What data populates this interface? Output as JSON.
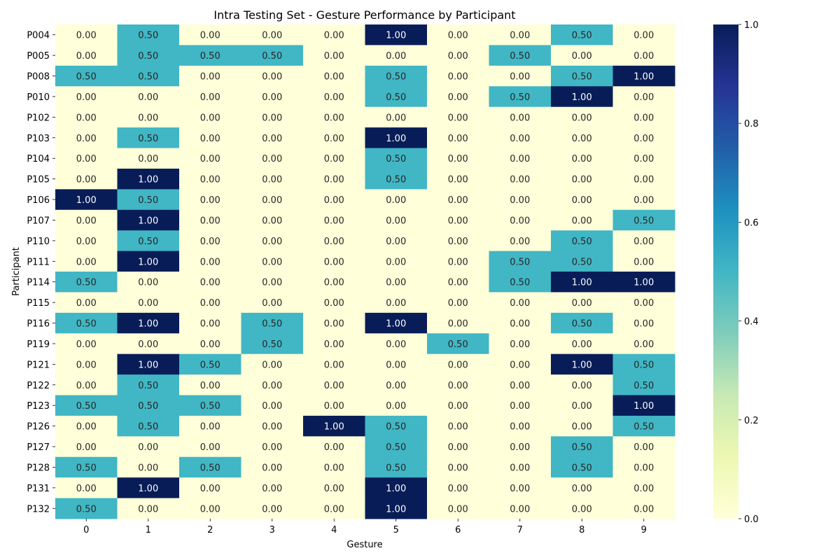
{
  "chart_data": {
    "type": "heatmap",
    "title": "Intra Testing Set - Gesture Performance by Participant",
    "xlabel": "Gesture",
    "ylabel": "Participant",
    "x": [
      "0",
      "1",
      "2",
      "3",
      "4",
      "5",
      "6",
      "7",
      "8",
      "9"
    ],
    "y": [
      "P004",
      "P005",
      "P008",
      "P010",
      "P102",
      "P103",
      "P104",
      "P105",
      "P106",
      "P107",
      "P110",
      "P111",
      "P114",
      "P115",
      "P116",
      "P119",
      "P121",
      "P122",
      "P123",
      "P126",
      "P127",
      "P128",
      "P131",
      "P132"
    ],
    "values": [
      [
        0.0,
        0.5,
        0.0,
        0.0,
        0.0,
        1.0,
        0.0,
        0.0,
        0.5,
        0.0
      ],
      [
        0.0,
        0.5,
        0.5,
        0.5,
        0.0,
        0.0,
        0.0,
        0.5,
        0.0,
        0.0
      ],
      [
        0.5,
        0.5,
        0.0,
        0.0,
        0.0,
        0.5,
        0.0,
        0.0,
        0.5,
        1.0
      ],
      [
        0.0,
        0.0,
        0.0,
        0.0,
        0.0,
        0.5,
        0.0,
        0.5,
        1.0,
        0.0
      ],
      [
        0.0,
        0.0,
        0.0,
        0.0,
        0.0,
        0.0,
        0.0,
        0.0,
        0.0,
        0.0
      ],
      [
        0.0,
        0.5,
        0.0,
        0.0,
        0.0,
        1.0,
        0.0,
        0.0,
        0.0,
        0.0
      ],
      [
        0.0,
        0.0,
        0.0,
        0.0,
        0.0,
        0.5,
        0.0,
        0.0,
        0.0,
        0.0
      ],
      [
        0.0,
        1.0,
        0.0,
        0.0,
        0.0,
        0.5,
        0.0,
        0.0,
        0.0,
        0.0
      ],
      [
        1.0,
        0.5,
        0.0,
        0.0,
        0.0,
        0.0,
        0.0,
        0.0,
        0.0,
        0.0
      ],
      [
        0.0,
        1.0,
        0.0,
        0.0,
        0.0,
        0.0,
        0.0,
        0.0,
        0.0,
        0.5
      ],
      [
        0.0,
        0.5,
        0.0,
        0.0,
        0.0,
        0.0,
        0.0,
        0.0,
        0.5,
        0.0
      ],
      [
        0.0,
        1.0,
        0.0,
        0.0,
        0.0,
        0.0,
        0.0,
        0.5,
        0.5,
        0.0
      ],
      [
        0.5,
        0.0,
        0.0,
        0.0,
        0.0,
        0.0,
        0.0,
        0.5,
        1.0,
        1.0
      ],
      [
        0.0,
        0.0,
        0.0,
        0.0,
        0.0,
        0.0,
        0.0,
        0.0,
        0.0,
        0.0
      ],
      [
        0.5,
        1.0,
        0.0,
        0.5,
        0.0,
        1.0,
        0.0,
        0.0,
        0.5,
        0.0
      ],
      [
        0.0,
        0.0,
        0.0,
        0.5,
        0.0,
        0.0,
        0.5,
        0.0,
        0.0,
        0.0
      ],
      [
        0.0,
        1.0,
        0.5,
        0.0,
        0.0,
        0.0,
        0.0,
        0.0,
        1.0,
        0.5
      ],
      [
        0.0,
        0.5,
        0.0,
        0.0,
        0.0,
        0.0,
        0.0,
        0.0,
        0.0,
        0.5
      ],
      [
        0.5,
        0.5,
        0.5,
        0.0,
        0.0,
        0.0,
        0.0,
        0.0,
        0.0,
        1.0
      ],
      [
        0.0,
        0.5,
        0.0,
        0.0,
        1.0,
        0.5,
        0.0,
        0.0,
        0.0,
        0.5
      ],
      [
        0.0,
        0.0,
        0.0,
        0.0,
        0.0,
        0.5,
        0.0,
        0.0,
        0.5,
        0.0
      ],
      [
        0.5,
        0.0,
        0.5,
        0.0,
        0.0,
        0.5,
        0.0,
        0.0,
        0.5,
        0.0
      ],
      [
        0.0,
        1.0,
        0.0,
        0.0,
        0.0,
        1.0,
        0.0,
        0.0,
        0.0,
        0.0
      ],
      [
        0.5,
        0.0,
        0.0,
        0.0,
        0.0,
        1.0,
        0.0,
        0.0,
        0.0,
        0.0
      ]
    ],
    "value_format": "0.00",
    "colormap": "YlGnBu",
    "color_scale": {
      "min": 0.0,
      "max": 1.0,
      "stops": [
        "#ffffd9",
        "#edf8b1",
        "#c7e9b4",
        "#7fcdbb",
        "#41b6c4",
        "#1d91c0",
        "#225ea8",
        "#253494",
        "#081d58"
      ]
    },
    "colorbar": {
      "ticks": [
        "0.0",
        "0.2",
        "0.4",
        "0.6",
        "0.8",
        "1.0"
      ],
      "position": "right"
    },
    "grid": false,
    "text_colors": {
      "light": "#ffffff",
      "dark": "#262626"
    }
  }
}
